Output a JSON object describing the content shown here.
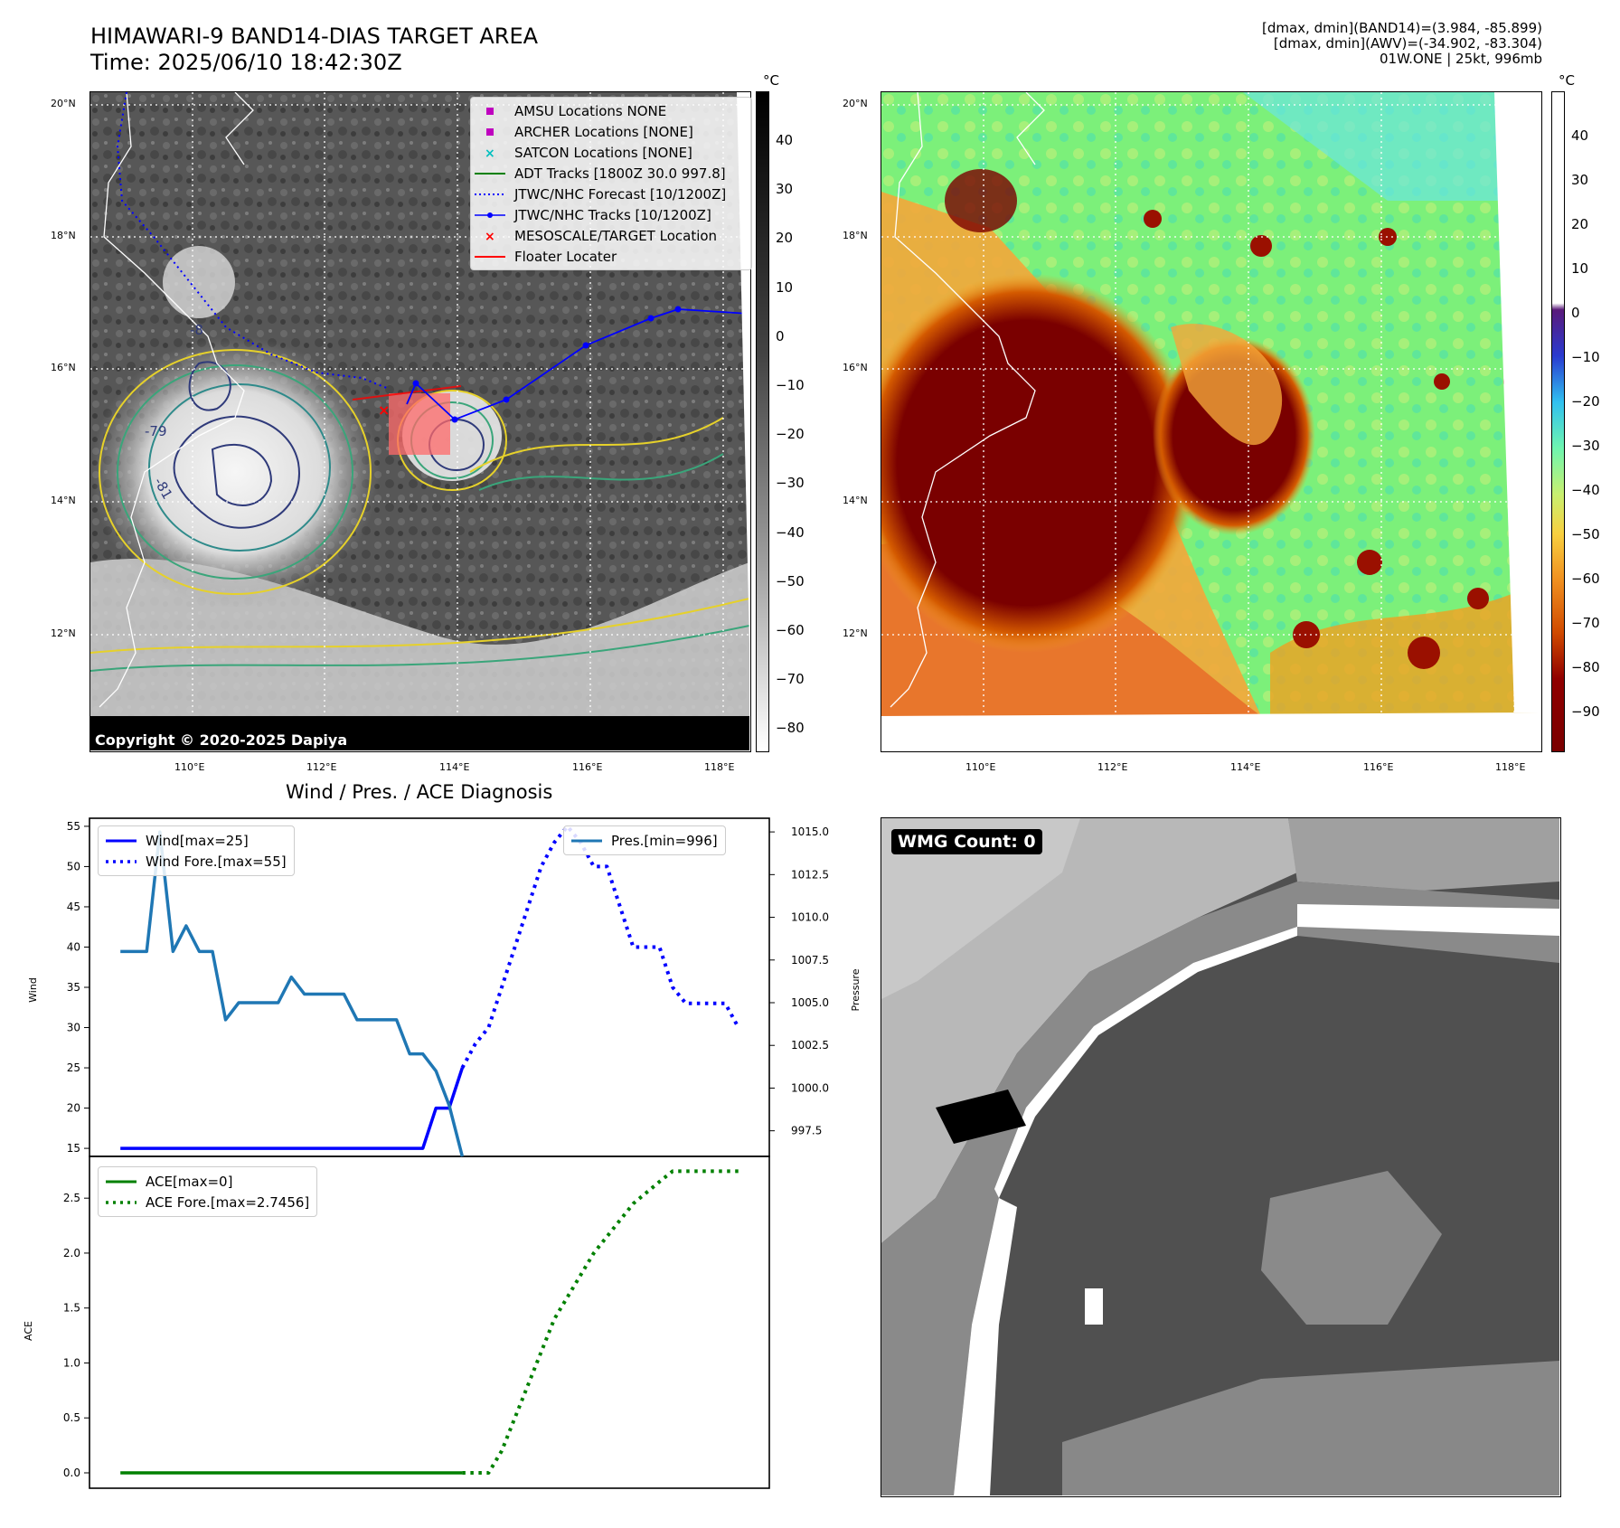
{
  "header": {
    "title_line1": "HIMAWARI-9 BAND14-DIAS TARGET AREA",
    "title_line2": "Time: 2025/06/10 18:42:30Z",
    "info_line1": "[dmax, dmin](BAND14)=(3.984, -85.899)",
    "info_line2": "[dmax, dmin](AWV)=(-34.902, -83.304)",
    "info_line3": "01W.ONE | 25kt, 996mb"
  },
  "map1": {
    "lat_labels": [
      "20°N",
      "18°N",
      "16°N",
      "14°N",
      "12°N"
    ],
    "lon_labels": [
      "110°E",
      "112°E",
      "114°E",
      "116°E",
      "118°E"
    ],
    "copyright": "Copyright © 2020-2025 Dapiya",
    "contour_labels": [
      "-79",
      "-81",
      "-8"
    ],
    "legend": [
      {
        "label": "AMSU Locations NONE",
        "color": "#bf00bf",
        "kind": "square"
      },
      {
        "label": "ARCHER Locations [NONE]",
        "color": "#bf00bf",
        "kind": "square"
      },
      {
        "label": "SATCON Locations [NONE]",
        "color": "#00bfbf",
        "kind": "x"
      },
      {
        "label": "ADT Tracks [1800Z 30.0 997.8]",
        "color": "#008000",
        "kind": "line"
      },
      {
        "label": "JTWC/NHC Forecast [10/1200Z]",
        "color": "#0000ff",
        "kind": "dotted"
      },
      {
        "label": "JTWC/NHC Tracks [10/1200Z]",
        "color": "#0000ff",
        "kind": "line-dot"
      },
      {
        "label": "MESOSCALE/TARGET Location",
        "color": "#ff0000",
        "kind": "x"
      },
      {
        "label": "Floater Locater",
        "color": "#ff0000",
        "kind": "line"
      }
    ],
    "colorbar_unit": "°C",
    "colorbar_ticks": [
      "40",
      "30",
      "20",
      "10",
      "0",
      "−10",
      "−20",
      "−30",
      "−40",
      "−50",
      "−60",
      "−70",
      "−80"
    ]
  },
  "map2": {
    "lat_labels": [
      "20°N",
      "18°N",
      "16°N",
      "14°N",
      "12°N"
    ],
    "lon_labels": [
      "110°E",
      "112°E",
      "114°E",
      "116°E",
      "118°E"
    ],
    "colorbar_unit": "°C",
    "colorbar_ticks": [
      "40",
      "30",
      "20",
      "10",
      "0",
      "−10",
      "−20",
      "−30",
      "−40",
      "−50",
      "−60",
      "−70",
      "−80",
      "−90"
    ]
  },
  "diag": {
    "title": "Wind / Pres. / ACE Diagnosis",
    "wind_ylabel": "Wind",
    "pres_ylabel": "Pressure",
    "ace_ylabel": "ACE",
    "legend_wind": "Wind[max=25]",
    "legend_wind_fore": "Wind Fore.[max=55]",
    "legend_pres": "Pres.[min=996]",
    "legend_ace": "ACE[max=0]",
    "legend_ace_fore": "ACE Fore.[max=2.7456]"
  },
  "wmg": {
    "label": "WMG Count: 0"
  },
  "colors": {
    "wind": "#0000ff",
    "pressure": "#1f77b4",
    "ace": "#008000"
  },
  "chart_data": [
    {
      "type": "line",
      "title": "Wind / Pres. / ACE Diagnosis",
      "ylabel": "Wind",
      "ylim": [
        14,
        56
      ],
      "yticks": [
        15,
        20,
        25,
        30,
        35,
        40,
        45,
        50,
        55
      ],
      "y2label": "Pressure",
      "y2lim": [
        996.0,
        1015.8
      ],
      "y2ticks": [
        997.5,
        1000.0,
        1002.5,
        1005.0,
        1007.5,
        1010.0,
        1012.5,
        1015.0
      ],
      "x": [
        0,
        1,
        2,
        3,
        4,
        5,
        6,
        7,
        8,
        9,
        10,
        11,
        12,
        13,
        14,
        15,
        16,
        17,
        18,
        19,
        20,
        21,
        22,
        23,
        24,
        25,
        26,
        27,
        28,
        29,
        30,
        31,
        32,
        33,
        34,
        35,
        36,
        37,
        38,
        39,
        40,
        41,
        42,
        43,
        44,
        45,
        46,
        47
      ],
      "series": [
        {
          "name": "Wind[max=25]",
          "axis": "left",
          "style": "solid",
          "x": [
            0,
            1,
            2,
            3,
            4,
            5,
            6,
            7,
            8,
            9,
            10,
            11,
            12,
            13,
            14,
            15,
            16,
            17,
            18,
            19,
            20,
            21,
            22,
            23,
            24,
            25,
            26
          ],
          "values": [
            15,
            15,
            15,
            15,
            15,
            15,
            15,
            15,
            15,
            15,
            15,
            15,
            15,
            15,
            15,
            15,
            15,
            15,
            15,
            15,
            15,
            15,
            15,
            15,
            20,
            20,
            25
          ]
        },
        {
          "name": "Wind Fore.[max=55]",
          "axis": "left",
          "style": "dotted",
          "x": [
            26,
            27,
            28,
            29,
            30,
            31,
            32,
            33,
            34,
            35,
            36,
            37,
            38,
            39,
            40,
            41,
            42,
            43,
            44,
            45,
            46,
            47
          ],
          "values": [
            25,
            28,
            30,
            35,
            40,
            45,
            50,
            53,
            55,
            53,
            50,
            50,
            45,
            40,
            40,
            40,
            35,
            33,
            33,
            33,
            33,
            30
          ]
        },
        {
          "name": "Pres.[min=996]",
          "axis": "right",
          "style": "solid",
          "x": [
            0,
            1,
            2,
            3,
            4,
            5,
            6,
            7,
            8,
            9,
            10,
            11,
            12,
            13,
            14,
            15,
            16,
            17,
            18,
            19,
            20,
            21,
            22,
            23,
            24,
            25,
            26
          ],
          "values": [
            1008,
            1008,
            1008,
            1015,
            1008,
            1009.5,
            1008,
            1008,
            1004,
            1005,
            1005,
            1005,
            1005,
            1006.5,
            1005.5,
            1005.5,
            1005.5,
            1005.5,
            1004,
            1004,
            1004,
            1004,
            1002,
            1002,
            1001,
            999,
            996
          ]
        }
      ]
    },
    {
      "type": "line",
      "ylabel": "ACE",
      "ylim": [
        -0.14,
        2.88
      ],
      "yticks": [
        0.0,
        0.5,
        1.0,
        1.5,
        2.0,
        2.5
      ],
      "series": [
        {
          "name": "ACE[max=0]",
          "style": "solid",
          "x": [
            0,
            26
          ],
          "values": [
            0,
            0
          ]
        },
        {
          "name": "ACE Fore.[max=2.7456]",
          "style": "dotted",
          "x": [
            26,
            27,
            28,
            29,
            30,
            31,
            32,
            33,
            34,
            35,
            36,
            37,
            38,
            39,
            40,
            41,
            42,
            43,
            44,
            45,
            46,
            47
          ],
          "values": [
            0,
            0,
            0,
            0.2,
            0.5,
            0.8,
            1.1,
            1.4,
            1.6,
            1.8,
            2.0,
            2.15,
            2.3,
            2.45,
            2.55,
            2.65,
            2.7456,
            2.7456,
            2.7456,
            2.7456,
            2.7456,
            2.7456
          ]
        }
      ]
    }
  ]
}
